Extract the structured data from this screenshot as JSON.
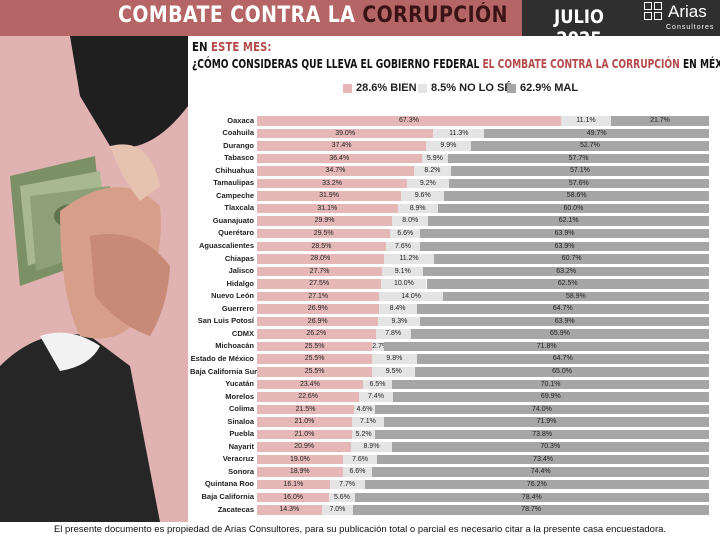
{
  "header": {
    "title_main": "COMBATE CONTRA LA ",
    "title_accent": "CORRUPCIÓN",
    "date": "JULIO 2025",
    "logo_name": "Arias",
    "logo_sub": "Consultores"
  },
  "question": {
    "line1_prefix": "EN ",
    "line1_accent": "ESTE MES:",
    "line2_prefix": "¿CÓMO CONSIDERAS QUE LLEVA EL GOBIERNO FEDERAL ",
    "line2_accent": "EL COMBATE CONTRA LA CORRUPCIÓN",
    "line2_suffix": " EN MÉXICO?"
  },
  "colors": {
    "bien": "#e6b7b7",
    "nolose": "#e4e4e4",
    "mal": "#a6a6a6",
    "header": "#b56565",
    "dark": "#2f2f2f"
  },
  "chart_data": {
    "type": "bar",
    "orientation": "horizontal-stacked-100",
    "legend": [
      {
        "label": "28.6% BIEN",
        "color": "#e6b7b7"
      },
      {
        "label": "8.5% NO LO SÉ",
        "color": "#e4e4e4"
      },
      {
        "label": "62.9% MAL",
        "color": "#a6a6a6"
      }
    ],
    "categories": [
      "Oaxaca",
      "Coahuila",
      "Durango",
      "Tabasco",
      "Chihuahua",
      "Tamaulipas",
      "Campeche",
      "Tlaxcala",
      "Guanajuato",
      "Querétaro",
      "Aguascalientes",
      "Chiapas",
      "Jalisco",
      "Hidalgo",
      "Nuevo León",
      "Guerrero",
      "San Luis Potosí",
      "CDMX",
      "Michoacán",
      "Estado de México",
      "Baja California Sur",
      "Yucatán",
      "Morelos",
      "Colima",
      "Sinaloa",
      "Puebla",
      "Nayarit",
      "Veracruz",
      "Sonora",
      "Quintana Roo",
      "Baja California",
      "Zacatecas"
    ],
    "series": [
      {
        "values": [
          67.3,
          39.0,
          37.4,
          36.4,
          34.7,
          33.2,
          31.9,
          31.1,
          29.9,
          29.5,
          28.5,
          28.0,
          27.7,
          27.5,
          27.1,
          26.9,
          26.9,
          26.2,
          25.5,
          25.5,
          25.5,
          23.4,
          22.6,
          21.5,
          21.0,
          21.0,
          20.9,
          19.0,
          18.9,
          16.1,
          16.0,
          14.3
        ]
      },
      {
        "values": [
          11.1,
          11.3,
          9.9,
          5.9,
          8.2,
          9.2,
          9.6,
          8.9,
          8.0,
          6.6,
          7.6,
          11.2,
          9.1,
          10.0,
          14.0,
          8.4,
          9.3,
          7.8,
          2.7,
          9.8,
          9.5,
          6.5,
          7.4,
          4.6,
          7.1,
          5.2,
          8.9,
          7.6,
          6.6,
          7.7,
          5.6,
          7.0
        ]
      },
      {
        "values": [
          21.7,
          49.7,
          52.7,
          57.7,
          57.1,
          57.6,
          58.6,
          60.0,
          62.1,
          63.9,
          63.9,
          60.7,
          63.2,
          62.5,
          58.9,
          64.7,
          63.9,
          65.9,
          71.8,
          64.7,
          65.0,
          70.1,
          69.9,
          74.0,
          71.9,
          73.8,
          70.3,
          73.4,
          74.4,
          76.2,
          78.4,
          78.7
        ]
      }
    ],
    "labels": [
      [
        "67.3%",
        "39.0%",
        "37.4%",
        "36.4%",
        "34.7%",
        "33.2%",
        "31.9%",
        "31.1%",
        "29.9%",
        "29.5%",
        "28.5%",
        "28.0%",
        "27.7%",
        "27.5%",
        "27.1%",
        "26.9%",
        "26.9%",
        "26.2%",
        "25.5%",
        "25.5%",
        "25.5%",
        "23.4%",
        "22.6%",
        "21.5%",
        "21.0%",
        "21.0%",
        "20.9%",
        "19.0%",
        "18.9%",
        "16.1%",
        "16.0%",
        "14.3%"
      ],
      [
        "11.1%",
        "11.3%",
        "9.9%",
        "5.9%",
        "8.2%",
        "9.2%",
        "9.6%",
        "8.9%",
        "8.0%",
        "6.6%",
        "7.6%",
        "11.2%",
        "9.1%",
        "10.0%",
        "14.0%",
        "8.4%",
        "9.3%",
        "7.8%",
        "2.7%",
        "9.8%",
        "9.5%",
        "6.5%",
        "7.4%",
        "4.6%",
        "7.1%",
        "5.2%",
        "8.9%",
        "7.6%",
        "6.6%",
        "7.7%",
        "5.6%",
        "7.0%"
      ],
      [
        "21.7%",
        "49.7%",
        "52.7%",
        "57.7%",
        "57.1%",
        "57.6%",
        "58.6%",
        "60.0%",
        "62.1%",
        "63.9%",
        "63.9%",
        "60.7%",
        "63.2%",
        "62.5%",
        "58.9%",
        "64.7%",
        "63.9%",
        "65.9%",
        "71.8%",
        "64.7%",
        "65.0%",
        "70.1%",
        "69.9%",
        "74.0%",
        "71.9%",
        "73.8%",
        "70.3%",
        "73.4%",
        "74.4%",
        "76.2%",
        "78.4%",
        "78.7%"
      ]
    ]
  },
  "footer": "El presente documento es propiedad de Arias Consultores, para su publicación total o parcial es necesario citar a la presente casa encuestadora."
}
